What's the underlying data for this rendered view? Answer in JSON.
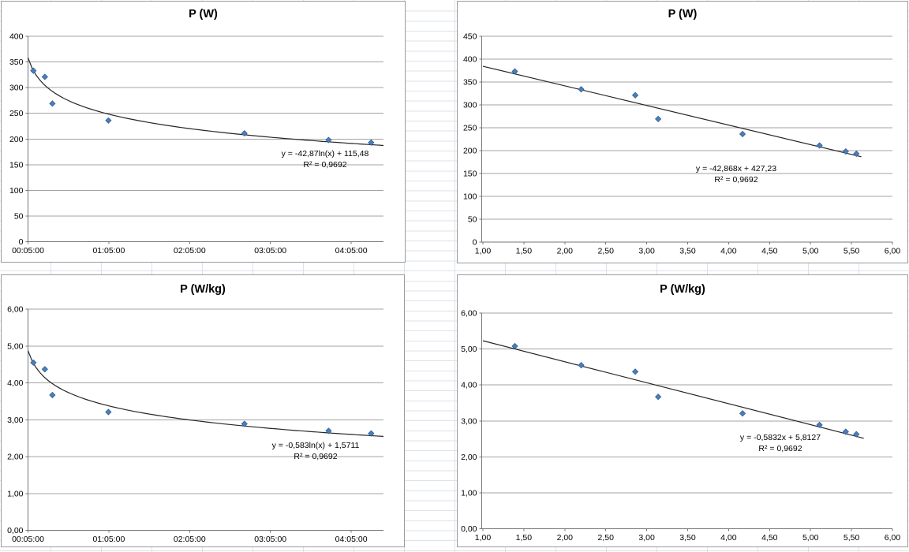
{
  "chart_data": [
    {
      "type": "scatter",
      "title": "P (W)",
      "x_axis": {
        "kind": "time",
        "tick_labels": [
          "00:05:00",
          "01:05:00",
          "02:05:00",
          "03:05:00",
          "04:05:00"
        ],
        "tick_minutes": [
          5,
          65,
          125,
          185,
          245
        ],
        "range_minutes": [
          5,
          269
        ]
      },
      "y_axis": {
        "tick_labels": [
          "0",
          "50",
          "100",
          "150",
          "200",
          "250",
          "300",
          "350",
          "400"
        ],
        "tick_values": [
          0,
          50,
          100,
          150,
          200,
          250,
          300,
          350,
          400
        ],
        "range": [
          0,
          400
        ]
      },
      "series": [
        {
          "name": "P (W)",
          "marker": "diamond",
          "t_minutes": [
            9,
            17.5,
            23.1,
            64.7,
            165.7,
            228.2,
            259.8
          ],
          "values": [
            333,
            321,
            269,
            236,
            211,
            198,
            193
          ]
        }
      ],
      "trendline": {
        "kind": "logarithmic",
        "a": -42.87,
        "b": 115.48,
        "x_units": "days",
        "equation": "y = -42,87ln(x) + 115,48",
        "r2": "R² = 0,9692"
      },
      "legend": "none",
      "grid": "horizontal"
    },
    {
      "type": "scatter",
      "title": "P (W)",
      "x_axis": {
        "kind": "numeric",
        "tick_labels": [
          "1,00",
          "1,50",
          "2,00",
          "2,50",
          "3,00",
          "3,50",
          "4,00",
          "4,50",
          "5,00",
          "5,50",
          "6,00"
        ],
        "tick_values": [
          1,
          1.5,
          2,
          2.5,
          3,
          3.5,
          4,
          4.5,
          5,
          5.5,
          6
        ],
        "range": [
          1,
          6
        ]
      },
      "y_axis": {
        "tick_labels": [
          "0",
          "50",
          "100",
          "150",
          "200",
          "250",
          "300",
          "350",
          "400",
          "450"
        ],
        "tick_values": [
          0,
          50,
          100,
          150,
          200,
          250,
          300,
          350,
          400,
          450
        ],
        "range": [
          0,
          450
        ]
      },
      "series": [
        {
          "name": "P (W)",
          "marker": "diamond",
          "x": [
            1.39,
            2.2,
            2.86,
            3.14,
            4.17,
            5.11,
            5.43,
            5.56
          ],
          "values": [
            373,
            334,
            321,
            269,
            236,
            211,
            198,
            193
          ]
        }
      ],
      "trendline": {
        "kind": "linear",
        "a": -42.868,
        "b": 427.23,
        "draw_range": [
          1,
          5.62
        ],
        "equation": "y = -42,868x + 427,23",
        "r2": "R² = 0,9692"
      },
      "legend": "none",
      "grid": "horizontal"
    },
    {
      "type": "scatter",
      "title": "P (W/kg)",
      "x_axis": {
        "kind": "time",
        "tick_labels": [
          "00:05:00",
          "01:05:00",
          "02:05:00",
          "03:05:00",
          "04:05:00"
        ],
        "tick_minutes": [
          5,
          65,
          125,
          185,
          245
        ],
        "range_minutes": [
          5,
          269
        ]
      },
      "y_axis": {
        "tick_labels": [
          "0,00",
          "1,00",
          "2,00",
          "3,00",
          "4,00",
          "5,00",
          "6,00"
        ],
        "tick_values": [
          0,
          1,
          2,
          3,
          4,
          5,
          6
        ],
        "range": [
          0,
          6
        ]
      },
      "series": [
        {
          "name": "P (W/kg)",
          "marker": "diamond",
          "t_minutes": [
            9,
            17.5,
            23.1,
            64.7,
            165.7,
            228.2,
            259.8
          ],
          "values": [
            4.55,
            4.37,
            3.67,
            3.21,
            2.89,
            2.7,
            2.63
          ]
        }
      ],
      "trendline": {
        "kind": "logarithmic",
        "a": -0.583,
        "b": 1.5711,
        "x_units": "days",
        "equation": "y = -0,583ln(x) + 1,5711",
        "r2": "R² = 0,9692"
      },
      "legend": "none",
      "grid": "horizontal"
    },
    {
      "type": "scatter",
      "title": "P (W/kg)",
      "x_axis": {
        "kind": "numeric",
        "tick_labels": [
          "1,00",
          "1,50",
          "2,00",
          "2,50",
          "3,00",
          "3,50",
          "4,00",
          "4,50",
          "5,00",
          "5,50",
          "6,00"
        ],
        "tick_values": [
          1,
          1.5,
          2,
          2.5,
          3,
          3.5,
          4,
          4.5,
          5,
          5.5,
          6
        ],
        "range": [
          1,
          6
        ]
      },
      "y_axis": {
        "tick_labels": [
          "0,00",
          "1,00",
          "2,00",
          "3,00",
          "4,00",
          "5,00",
          "6,00"
        ],
        "tick_values": [
          0,
          1,
          2,
          3,
          4,
          5,
          6
        ],
        "range": [
          0,
          6
        ]
      },
      "series": [
        {
          "name": "P (W/kg)",
          "marker": "diamond",
          "x": [
            1.39,
            2.2,
            2.86,
            3.14,
            4.17,
            5.11,
            5.43,
            5.56
          ],
          "values": [
            5.08,
            4.55,
            4.37,
            3.67,
            3.21,
            2.89,
            2.7,
            2.63
          ]
        }
      ],
      "trendline": {
        "kind": "linear",
        "a": -0.5832,
        "b": 5.8127,
        "draw_range": [
          1,
          5.65
        ],
        "equation": "y = -0,5832x + 5,8127",
        "r2": "R² = 0,9692"
      },
      "legend": "none",
      "grid": "horizontal"
    }
  ],
  "colors": {
    "marker_fill": "#4a7ebb",
    "marker_stroke": "#2f5b94",
    "trendline": "#262626",
    "gridline": "#a3a3a3",
    "axis": "#767676",
    "sheet_gridline": "#dde2e9",
    "chart_border": "#9b9b9b"
  }
}
